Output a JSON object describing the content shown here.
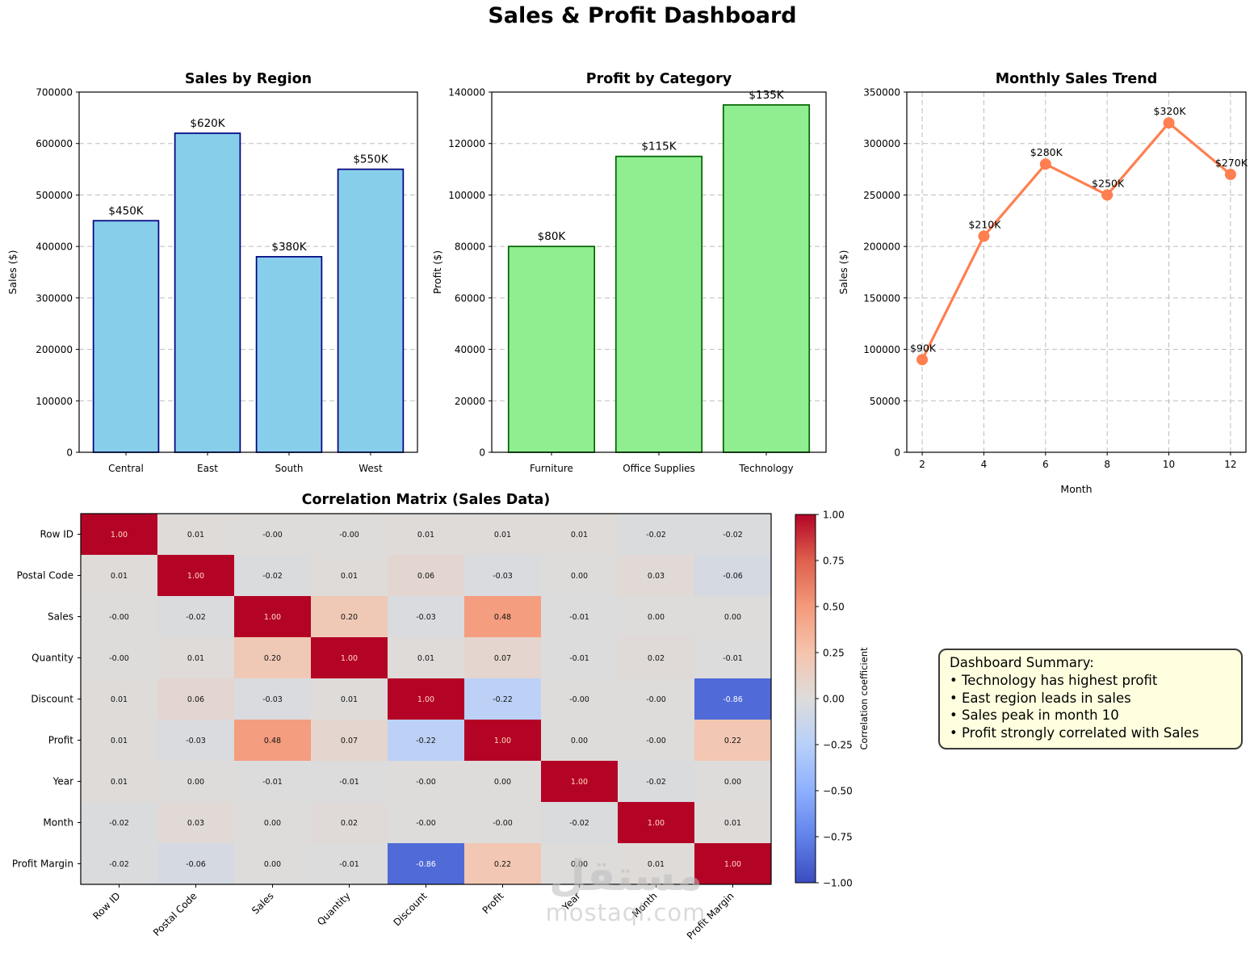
{
  "page": {
    "title": "Sales & Profit Dashboard",
    "watermark": {
      "logo_text": "مستقل",
      "site": "mostaql.com"
    }
  },
  "chart_data": [
    {
      "type": "bar",
      "title": "Sales by Region",
      "xlabel": "",
      "ylabel": "Sales ($)",
      "categories": [
        "Central",
        "East",
        "South",
        "West"
      ],
      "values": [
        450000,
        620000,
        380000,
        550000
      ],
      "value_labels": [
        "$450K",
        "$620K",
        "$380K",
        "$550K"
      ],
      "ylim": [
        0,
        700000
      ],
      "yticks": [
        "0",
        "100000",
        "200000",
        "300000",
        "400000",
        "500000",
        "600000",
        "700000"
      ],
      "bar_color": "#87CEEB",
      "bar_edge_color": "#000080",
      "grid": "y-dashed"
    },
    {
      "type": "bar",
      "title": "Profit by Category",
      "xlabel": "",
      "ylabel": "Profit ($)",
      "categories": [
        "Furniture",
        "Office Supplies",
        "Technology"
      ],
      "values": [
        80000,
        115000,
        135000
      ],
      "value_labels": [
        "$80K",
        "$115K",
        "$135K"
      ],
      "ylim": [
        0,
        140000
      ],
      "yticks": [
        "0",
        "20000",
        "40000",
        "60000",
        "80000",
        "100000",
        "120000",
        "140000"
      ],
      "bar_color": "#90EE90",
      "bar_edge_color": "#006400",
      "grid": "y-dashed"
    },
    {
      "type": "line",
      "title": "Monthly Sales Trend",
      "xlabel": "Month",
      "ylabel": "Sales ($)",
      "x": [
        2,
        4,
        6,
        8,
        10,
        12
      ],
      "y": [
        90000,
        210000,
        280000,
        250000,
        320000,
        270000
      ],
      "point_labels": [
        "$90K",
        "$210K",
        "$280K",
        "$250K",
        "$320K",
        "$270K"
      ],
      "xlim": [
        1.5,
        12.5
      ],
      "ylim": [
        0,
        350000
      ],
      "xticks": [
        "2",
        "4",
        "6",
        "8",
        "10",
        "12"
      ],
      "yticks": [
        "0",
        "50000",
        "100000",
        "150000",
        "200000",
        "250000",
        "300000",
        "350000"
      ],
      "line_color": "#FF7F50",
      "grid": "both-dashed",
      "legend": "none"
    },
    {
      "type": "heatmap",
      "title": "Correlation Matrix (Sales Data)",
      "labels": [
        "Row ID",
        "Postal Code",
        "Sales",
        "Quantity",
        "Discount",
        "Profit",
        "Year",
        "Month",
        "Profit Margin"
      ],
      "matrix": [
        [
          "1.00",
          "0.01",
          "-0.00",
          "-0.00",
          "0.01",
          "0.01",
          "0.01",
          "-0.02",
          "-0.02"
        ],
        [
          "0.01",
          "1.00",
          "-0.02",
          "0.01",
          "0.06",
          "-0.03",
          "0.00",
          "0.03",
          "-0.06"
        ],
        [
          "-0.00",
          "-0.02",
          "1.00",
          "0.20",
          "-0.03",
          "0.48",
          "-0.01",
          "0.00",
          "0.00"
        ],
        [
          "-0.00",
          "0.01",
          "0.20",
          "1.00",
          "0.01",
          "0.07",
          "-0.01",
          "0.02",
          "-0.01"
        ],
        [
          "0.01",
          "0.06",
          "-0.03",
          "0.01",
          "1.00",
          "-0.22",
          "-0.00",
          "-0.00",
          "-0.86"
        ],
        [
          "0.01",
          "-0.03",
          "0.48",
          "0.07",
          "-0.22",
          "1.00",
          "0.00",
          "-0.00",
          "0.22"
        ],
        [
          "0.01",
          "0.00",
          "-0.01",
          "-0.01",
          "-0.00",
          "0.00",
          "1.00",
          "-0.02",
          "0.00"
        ],
        [
          "-0.02",
          "0.03",
          "0.00",
          "0.02",
          "-0.00",
          "-0.00",
          "-0.02",
          "1.00",
          "0.01"
        ],
        [
          "-0.02",
          "-0.06",
          "0.00",
          "-0.01",
          "-0.86",
          "0.22",
          "0.00",
          "0.01",
          "1.00"
        ]
      ],
      "colorbar": {
        "label": "Correlation coefficient",
        "ticks": [
          "1.00",
          "0.75",
          "0.50",
          "0.25",
          "0.00",
          "−0.25",
          "−0.50",
          "−0.75",
          "−1.00"
        ],
        "vmin": -1,
        "vmax": 1,
        "colormap": "coolwarm"
      }
    }
  ],
  "summary_box": {
    "title": "Dashboard Summary:",
    "bullets": [
      "Technology has highest profit",
      "East region leads in sales",
      "Sales peak in month 10",
      "Profit strongly correlated with Sales"
    ]
  }
}
